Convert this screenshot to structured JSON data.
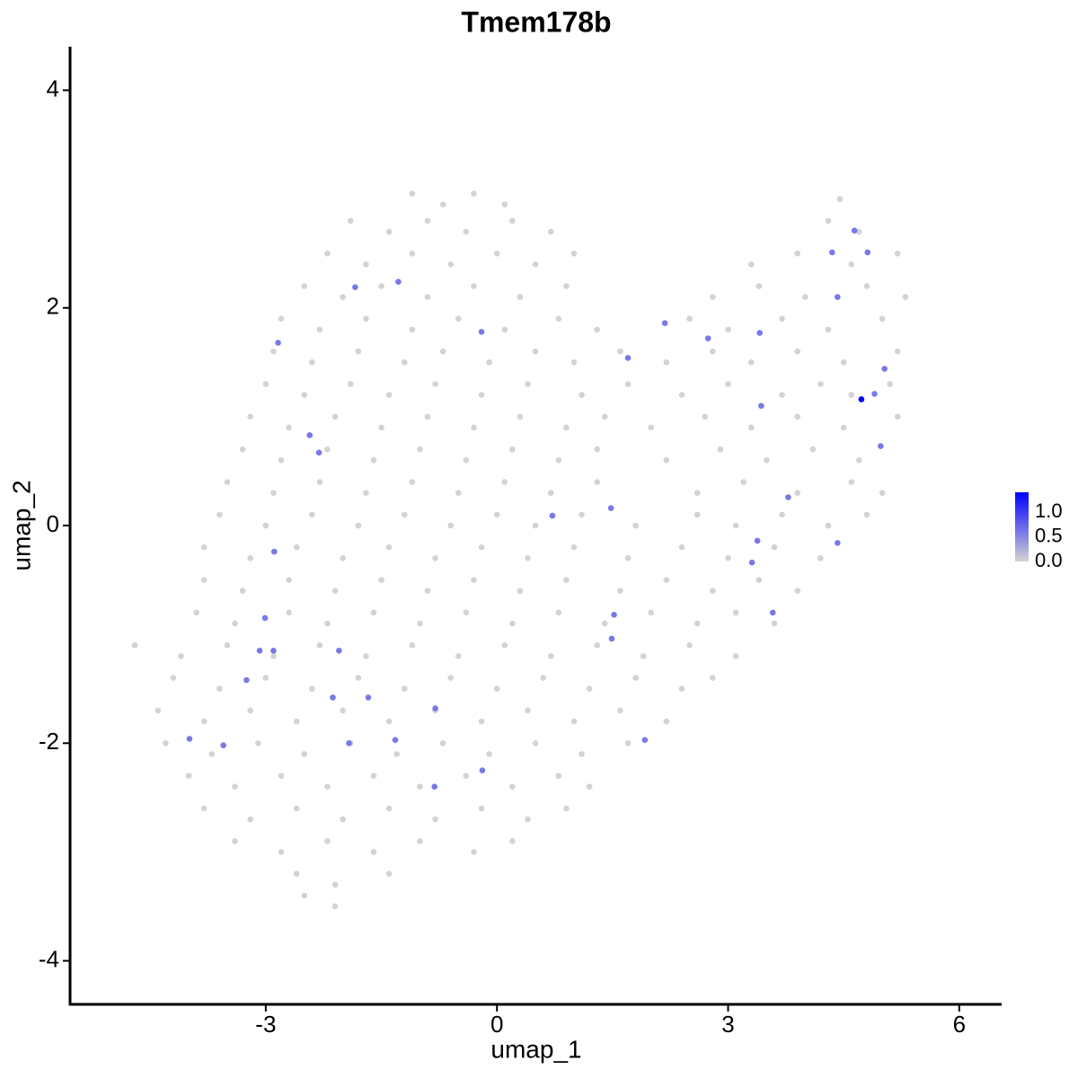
{
  "chart_data": {
    "type": "scatter",
    "title": "Tmem178b",
    "x_label": "umap_1",
    "y_label": "umap_2",
    "xlim": [
      -5.54,
      6.55
    ],
    "ylim": [
      -4.4,
      4.4
    ],
    "xticks": [
      -3,
      0,
      3,
      6
    ],
    "yticks": [
      -4,
      -2,
      0,
      2,
      4
    ],
    "grid": false,
    "color_low": "#d3d3d3",
    "color_high": "#0000ff",
    "clim": [
      0,
      1.4
    ],
    "colorbar_ticks": [
      {
        "value": 0,
        "label": "0.0"
      },
      {
        "value": 0.5,
        "label": "0.5"
      },
      {
        "value": 1,
        "label": "1.0"
      }
    ],
    "x": [
      -1.1,
      -0.7,
      -0.3,
      0.1,
      4.45,
      -1.9,
      -1.4,
      -0.9,
      -0.4,
      0.2,
      0.7,
      4.3,
      4.7,
      -2.2,
      -1.7,
      -1.1,
      -0.6,
      0.0,
      0.5,
      1.0,
      3.3,
      3.9,
      4.6,
      5.2,
      -2.5,
      -2.0,
      -1.5,
      -0.9,
      -0.3,
      0.3,
      0.9,
      2.8,
      3.4,
      4.0,
      4.8,
      5.3,
      -2.8,
      -2.3,
      -1.7,
      -1.1,
      -0.5,
      0.1,
      0.8,
      1.3,
      2.5,
      3.0,
      3.7,
      4.3,
      5.0,
      -2.9,
      -2.4,
      -1.8,
      -1.2,
      -0.7,
      -0.1,
      0.5,
      1.0,
      1.6,
      2.2,
      2.8,
      3.3,
      3.9,
      4.5,
      5.2,
      -3.0,
      -2.5,
      -1.9,
      -1.4,
      -0.8,
      -0.2,
      0.4,
      1.1,
      1.7,
      2.4,
      3.0,
      3.7,
      4.2,
      4.6,
      5.1,
      -3.2,
      -2.7,
      -2.1,
      -1.5,
      -0.9,
      -0.3,
      0.3,
      0.9,
      1.4,
      2.0,
      2.7,
      3.3,
      3.9,
      4.5,
      5.2,
      -3.3,
      -2.8,
      -2.2,
      -1.6,
      -1.0,
      -0.4,
      0.2,
      0.8,
      1.3,
      2.2,
      2.9,
      3.5,
      4.1,
      4.7,
      -3.5,
      -2.9,
      -2.3,
      -1.7,
      -1.1,
      -0.5,
      0.1,
      0.7,
      1.3,
      2.6,
      3.2,
      3.9,
      4.6,
      5.0,
      -3.6,
      -3.0,
      -2.4,
      -1.8,
      -1.2,
      -0.6,
      0.0,
      0.5,
      1.1,
      1.8,
      2.6,
      3.1,
      3.7,
      4.3,
      4.8,
      -3.8,
      -3.2,
      -2.6,
      -2.0,
      -1.4,
      -0.8,
      -0.2,
      0.4,
      1.0,
      1.7,
      2.4,
      3.0,
      3.6,
      4.2,
      -3.8,
      -3.3,
      -2.7,
      -2.1,
      -1.5,
      -0.9,
      -0.3,
      0.3,
      0.9,
      1.6,
      2.2,
      2.8,
      3.4,
      3.9,
      -3.9,
      -3.4,
      -2.7,
      -2.2,
      -1.6,
      -1.0,
      -0.4,
      0.2,
      0.8,
      1.4,
      2.0,
      2.6,
      3.1,
      3.6,
      -4.7,
      -4.1,
      -3.5,
      -2.9,
      -2.3,
      -1.7,
      -1.1,
      -0.5,
      0.1,
      0.7,
      1.3,
      1.9,
      2.5,
      3.1,
      -4.2,
      -3.6,
      -3.0,
      -2.4,
      -1.8,
      -1.2,
      -0.6,
      0.0,
      0.6,
      1.2,
      1.8,
      2.4,
      2.8,
      -4.4,
      -3.8,
      -3.2,
      -2.6,
      -2.0,
      -1.4,
      -0.8,
      -0.2,
      0.4,
      1.0,
      1.6,
      2.2,
      -4.3,
      -3.7,
      -3.1,
      -2.5,
      -1.9,
      -1.3,
      -0.7,
      -0.1,
      0.5,
      1.1,
      1.7,
      -4.0,
      -3.4,
      -2.8,
      -2.2,
      -1.6,
      -1.0,
      -0.4,
      0.2,
      0.8,
      1.2,
      -3.8,
      -3.2,
      -2.6,
      -2.0,
      -1.4,
      -0.8,
      -0.2,
      0.4,
      0.9,
      -3.4,
      -2.8,
      -2.2,
      -1.6,
      -1.0,
      -0.3,
      0.2,
      -2.6,
      -2.1,
      -1.4,
      -2.5,
      -2.1,
      -1.84,
      -1.28,
      -0.2,
      -2.84,
      -2.43,
      -2.31,
      -2.89,
      -3.01,
      -3.08,
      -2.9,
      -2.05,
      -3.25,
      -2.13,
      -1.67,
      -3.99,
      -3.55,
      -1.92,
      -1.32,
      -0.8,
      -0.81,
      -0.19,
      0.72,
      1.48,
      1.52,
      1.49,
      1.92,
      1.7,
      2.18,
      2.74,
      3.41,
      3.43,
      3.78,
      3.38,
      3.31,
      3.58,
      4.42,
      4.35,
      4.64,
      4.81,
      4.42,
      5.03,
      4.9,
      4.98,
      4.73
    ],
    "y": [
      3.05,
      2.95,
      3.05,
      2.95,
      3.0,
      2.8,
      2.7,
      2.8,
      2.7,
      2.8,
      2.7,
      2.8,
      2.7,
      2.5,
      2.4,
      2.5,
      2.4,
      2.5,
      2.4,
      2.5,
      2.4,
      2.5,
      2.4,
      2.5,
      2.2,
      2.1,
      2.2,
      2.1,
      2.2,
      2.1,
      2.2,
      2.1,
      2.2,
      2.1,
      2.2,
      2.1,
      1.9,
      1.8,
      1.9,
      1.8,
      1.9,
      1.8,
      1.9,
      1.8,
      1.9,
      1.8,
      1.9,
      1.8,
      1.9,
      1.6,
      1.5,
      1.6,
      1.5,
      1.6,
      1.5,
      1.6,
      1.5,
      1.6,
      1.5,
      1.6,
      1.5,
      1.6,
      1.5,
      1.6,
      1.3,
      1.2,
      1.3,
      1.2,
      1.3,
      1.2,
      1.3,
      1.2,
      1.3,
      1.2,
      1.3,
      1.2,
      1.3,
      1.2,
      1.3,
      1.0,
      0.9,
      1.0,
      0.9,
      1.0,
      0.9,
      1.0,
      0.9,
      1.0,
      0.9,
      1.0,
      0.9,
      1.0,
      0.9,
      1.0,
      0.7,
      0.6,
      0.7,
      0.6,
      0.7,
      0.6,
      0.7,
      0.6,
      0.7,
      0.6,
      0.7,
      0.6,
      0.7,
      0.6,
      0.4,
      0.3,
      0.4,
      0.3,
      0.4,
      0.3,
      0.4,
      0.3,
      0.4,
      0.3,
      0.4,
      0.3,
      0.4,
      0.3,
      0.1,
      0.0,
      0.1,
      0.0,
      0.1,
      0.0,
      0.1,
      0.0,
      0.1,
      0.0,
      0.1,
      0.0,
      0.1,
      0.0,
      0.1,
      -0.2,
      -0.3,
      -0.2,
      -0.3,
      -0.2,
      -0.3,
      -0.2,
      -0.3,
      -0.2,
      -0.3,
      -0.2,
      -0.3,
      -0.2,
      -0.3,
      -0.5,
      -0.6,
      -0.5,
      -0.6,
      -0.5,
      -0.6,
      -0.5,
      -0.6,
      -0.5,
      -0.6,
      -0.5,
      -0.6,
      -0.5,
      -0.6,
      -0.8,
      -0.9,
      -0.8,
      -0.9,
      -0.8,
      -0.9,
      -0.8,
      -0.9,
      -0.8,
      -0.9,
      -0.8,
      -0.9,
      -0.8,
      -0.9,
      -1.1,
      -1.2,
      -1.1,
      -1.2,
      -1.1,
      -1.2,
      -1.1,
      -1.2,
      -1.1,
      -1.2,
      -1.1,
      -1.2,
      -1.1,
      -1.2,
      -1.4,
      -1.5,
      -1.4,
      -1.5,
      -1.4,
      -1.5,
      -1.4,
      -1.5,
      -1.4,
      -1.5,
      -1.4,
      -1.5,
      -1.4,
      -1.7,
      -1.8,
      -1.7,
      -1.8,
      -1.7,
      -1.8,
      -1.7,
      -1.8,
      -1.7,
      -1.8,
      -1.7,
      -1.8,
      -2.0,
      -2.1,
      -2.0,
      -2.1,
      -2.0,
      -2.1,
      -2.0,
      -2.1,
      -2.0,
      -2.1,
      -2.0,
      -2.3,
      -2.4,
      -2.3,
      -2.4,
      -2.3,
      -2.4,
      -2.3,
      -2.4,
      -2.3,
      -2.4,
      -2.6,
      -2.7,
      -2.6,
      -2.7,
      -2.6,
      -2.7,
      -2.6,
      -2.7,
      -2.6,
      -2.9,
      -3.0,
      -2.9,
      -3.0,
      -2.9,
      -3.0,
      -2.9,
      -3.2,
      -3.3,
      -3.2,
      -3.4,
      -3.5,
      2.19,
      2.24,
      1.78,
      1.68,
      0.83,
      0.67,
      -0.24,
      -0.85,
      -1.15,
      -1.15,
      -1.15,
      -1.42,
      -1.58,
      -1.58,
      -1.96,
      -2.02,
      -2.0,
      -1.97,
      -1.68,
      -2.4,
      -2.25,
      0.09,
      0.16,
      -0.82,
      -1.04,
      -1.97,
      1.54,
      1.86,
      1.72,
      1.77,
      1.1,
      0.26,
      -0.14,
      -0.34,
      -0.8,
      -0.16,
      2.51,
      2.71,
      2.51,
      2.1,
      1.44,
      1.21,
      0.73,
      1.16
    ],
    "values": [
      0,
      0,
      0,
      0,
      0,
      0,
      0,
      0,
      0,
      0,
      0,
      0,
      0,
      0,
      0,
      0,
      0,
      0,
      0,
      0,
      0,
      0,
      0,
      0,
      0,
      0,
      0,
      0,
      0,
      0,
      0,
      0,
      0,
      0,
      0,
      0,
      0,
      0,
      0,
      0,
      0,
      0,
      0,
      0,
      0,
      0,
      0,
      0,
      0,
      0,
      0,
      0,
      0,
      0,
      0,
      0,
      0,
      0,
      0,
      0,
      0,
      0,
      0,
      0,
      0,
      0,
      0,
      0,
      0,
      0,
      0,
      0,
      0,
      0,
      0,
      0,
      0,
      0,
      0,
      0,
      0,
      0,
      0,
      0,
      0,
      0,
      0,
      0,
      0,
      0,
      0,
      0,
      0,
      0,
      0,
      0,
      0,
      0,
      0,
      0,
      0,
      0,
      0,
      0,
      0,
      0,
      0,
      0,
      0,
      0,
      0,
      0,
      0,
      0,
      0,
      0,
      0,
      0,
      0,
      0,
      0,
      0,
      0,
      0,
      0,
      0,
      0,
      0,
      0,
      0,
      0,
      0,
      0,
      0,
      0,
      0,
      0,
      0,
      0,
      0,
      0,
      0,
      0,
      0,
      0,
      0,
      0,
      0,
      0,
      0,
      0,
      0,
      0,
      0,
      0,
      0,
      0,
      0,
      0,
      0,
      0,
      0,
      0,
      0,
      0,
      0,
      0,
      0,
      0,
      0,
      0,
      0,
      0,
      0,
      0,
      0,
      0,
      0,
      0,
      0,
      0,
      0,
      0,
      0,
      0,
      0,
      0,
      0,
      0,
      0,
      0,
      0,
      0,
      0,
      0,
      0,
      0,
      0,
      0,
      0,
      0,
      0,
      0,
      0,
      0,
      0,
      0,
      0,
      0,
      0,
      0,
      0,
      0,
      0,
      0,
      0,
      0,
      0,
      0,
      0,
      0,
      0,
      0,
      0,
      0,
      0,
      0,
      0,
      0,
      0,
      0,
      0,
      0,
      0,
      0,
      0,
      0,
      0,
      0,
      0,
      0,
      0,
      0,
      0,
      0,
      0,
      0,
      0,
      0,
      0,
      0,
      0,
      0,
      0,
      0,
      0,
      0,
      0,
      0,
      0,
      0.6,
      0.6,
      0.6,
      0.6,
      0.6,
      0.6,
      0.6,
      0.6,
      0.6,
      0.6,
      0.6,
      0.6,
      0.6,
      0.6,
      0.6,
      0.6,
      0.6,
      0.6,
      0.6,
      0.6,
      0.6,
      0.6,
      0.6,
      0.6,
      0.6,
      0.6,
      0.6,
      0.6,
      0.6,
      0.6,
      0.6,
      0.6,
      0.6,
      0.6,
      0.6,
      0.6,
      0.6,
      0.6,
      0.6,
      0.6,
      0.6,
      0.6,
      0.6,
      1.4
    ]
  }
}
